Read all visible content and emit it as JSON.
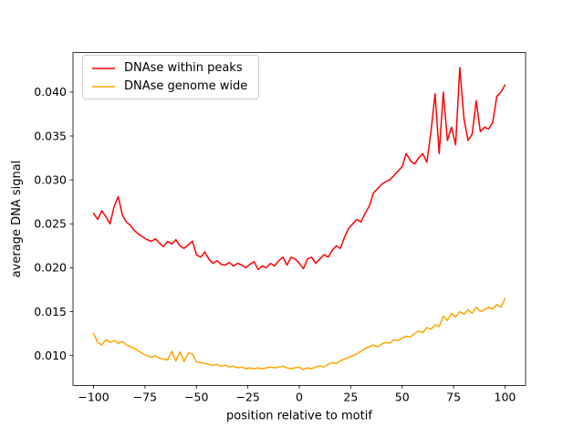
{
  "figure": {
    "background": "#ffffff"
  },
  "chart_data": {
    "type": "line",
    "title": "",
    "xlabel": "position relative to motif",
    "ylabel": "average DNA signal",
    "xlim": [
      -110,
      110
    ],
    "ylim": [
      0.0066,
      0.0445
    ],
    "xticks": [
      -100,
      -75,
      -50,
      -25,
      0,
      25,
      50,
      75,
      100
    ],
    "yticks": [
      0.01,
      0.015,
      0.02,
      0.025,
      0.03,
      0.035,
      0.04
    ],
    "grid": false,
    "legend_position": "upper left",
    "frame_color": "#000000",
    "x": [
      -100,
      -98,
      -96,
      -94,
      -92,
      -90,
      -88,
      -86,
      -84,
      -82,
      -80,
      -78,
      -76,
      -74,
      -72,
      -70,
      -68,
      -66,
      -64,
      -62,
      -60,
      -58,
      -56,
      -54,
      -52,
      -50,
      -48,
      -46,
      -44,
      -42,
      -40,
      -38,
      -36,
      -34,
      -32,
      -30,
      -28,
      -26,
      -24,
      -22,
      -20,
      -18,
      -16,
      -14,
      -12,
      -10,
      -8,
      -6,
      -4,
      -2,
      0,
      2,
      4,
      6,
      8,
      10,
      12,
      14,
      16,
      18,
      20,
      22,
      24,
      26,
      28,
      30,
      32,
      34,
      36,
      38,
      40,
      42,
      44,
      46,
      48,
      50,
      52,
      54,
      56,
      58,
      60,
      62,
      64,
      66,
      68,
      70,
      72,
      74,
      76,
      78,
      80,
      82,
      84,
      86,
      88,
      90,
      92,
      94,
      96,
      98,
      100
    ],
    "series": [
      {
        "name": "DNAse within peaks",
        "color": "#ff0000",
        "values": [
          0.0262,
          0.0255,
          0.0265,
          0.0258,
          0.025,
          0.027,
          0.0281,
          0.026,
          0.0252,
          0.0248,
          0.0242,
          0.0238,
          0.0235,
          0.0232,
          0.023,
          0.0233,
          0.0228,
          0.0224,
          0.023,
          0.0227,
          0.0232,
          0.0225,
          0.0222,
          0.0226,
          0.023,
          0.0215,
          0.0212,
          0.0218,
          0.021,
          0.0205,
          0.0208,
          0.0204,
          0.0203,
          0.0206,
          0.0202,
          0.0205,
          0.0203,
          0.02,
          0.0204,
          0.0207,
          0.0198,
          0.0202,
          0.02,
          0.0205,
          0.0202,
          0.0208,
          0.0212,
          0.0203,
          0.0212,
          0.021,
          0.0205,
          0.0199,
          0.021,
          0.0212,
          0.0205,
          0.021,
          0.0215,
          0.0212,
          0.022,
          0.0225,
          0.0222,
          0.0235,
          0.0245,
          0.025,
          0.0255,
          0.0252,
          0.0262,
          0.027,
          0.0285,
          0.029,
          0.0295,
          0.0298,
          0.03,
          0.0305,
          0.031,
          0.0315,
          0.033,
          0.0322,
          0.0318,
          0.0325,
          0.033,
          0.032,
          0.0355,
          0.0398,
          0.033,
          0.04,
          0.0345,
          0.036,
          0.034,
          0.0428,
          0.037,
          0.0345,
          0.0352,
          0.039,
          0.0355,
          0.036,
          0.0358,
          0.0365,
          0.0395,
          0.04,
          0.0408
        ]
      },
      {
        "name": "DNAse genome wide",
        "color": "#ffa500",
        "values": [
          0.0125,
          0.0115,
          0.0112,
          0.0118,
          0.0115,
          0.0117,
          0.0114,
          0.0116,
          0.0112,
          0.011,
          0.0108,
          0.0105,
          0.0102,
          0.01,
          0.0098,
          0.01,
          0.0097,
          0.0096,
          0.0095,
          0.0105,
          0.0094,
          0.0104,
          0.0093,
          0.0103,
          0.0102,
          0.0093,
          0.0092,
          0.0091,
          0.009,
          0.0089,
          0.009,
          0.0088,
          0.0089,
          0.0087,
          0.0088,
          0.0086,
          0.0087,
          0.0085,
          0.0086,
          0.0085,
          0.0086,
          0.0085,
          0.0086,
          0.0087,
          0.0086,
          0.0087,
          0.0088,
          0.0086,
          0.0085,
          0.0086,
          0.0087,
          0.0084,
          0.0086,
          0.0085,
          0.0087,
          0.0088,
          0.0087,
          0.009,
          0.0092,
          0.0091,
          0.0094,
          0.0096,
          0.0098,
          0.01,
          0.0102,
          0.0105,
          0.0108,
          0.011,
          0.0112,
          0.011,
          0.0113,
          0.0115,
          0.0114,
          0.0118,
          0.0117,
          0.012,
          0.0122,
          0.0121,
          0.0125,
          0.0128,
          0.0126,
          0.0132,
          0.013,
          0.0135,
          0.0133,
          0.0145,
          0.014,
          0.0148,
          0.0144,
          0.015,
          0.0147,
          0.0152,
          0.0148,
          0.0155,
          0.015,
          0.0152,
          0.0155,
          0.0153,
          0.0158,
          0.0155,
          0.0165
        ]
      }
    ]
  }
}
